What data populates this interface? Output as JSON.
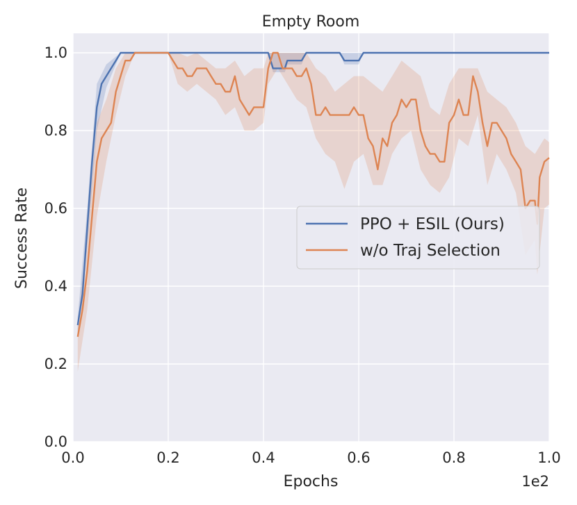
{
  "chart_data": {
    "type": "line",
    "title": "Empty Room",
    "xlabel": "Epochs",
    "ylabel": "Success Rate",
    "x_offset_label": "1e2",
    "xlim": [
      0.0,
      1.0
    ],
    "ylim": [
      0.0,
      1.05
    ],
    "xticks": [
      0.0,
      0.2,
      0.4,
      0.6,
      0.8,
      1.0
    ],
    "xtick_labels": [
      "0.0",
      "0.2",
      "0.4",
      "0.6",
      "0.8",
      "1.0"
    ],
    "yticks": [
      0.0,
      0.2,
      0.4,
      0.6,
      0.8,
      1.0
    ],
    "ytick_labels": [
      "0.0",
      "0.2",
      "0.4",
      "0.6",
      "0.8",
      "1.0"
    ],
    "grid": true,
    "legend_position": "center-right",
    "background": "#eaeaf2",
    "series": [
      {
        "name": "PPO + ESIL (Ours)",
        "color": "#4c72b0",
        "points": [
          [
            0.01,
            0.3
          ],
          [
            0.02,
            0.38
          ],
          [
            0.03,
            0.55
          ],
          [
            0.04,
            0.72
          ],
          [
            0.05,
            0.86
          ],
          [
            0.06,
            0.92
          ],
          [
            0.07,
            0.94
          ],
          [
            0.08,
            0.96
          ],
          [
            0.09,
            0.98
          ],
          [
            0.1,
            1.0
          ],
          [
            0.2,
            1.0
          ],
          [
            0.3,
            1.0
          ],
          [
            0.41,
            1.0
          ],
          [
            0.42,
            0.96
          ],
          [
            0.445,
            0.96
          ],
          [
            0.45,
            0.98
          ],
          [
            0.48,
            0.98
          ],
          [
            0.49,
            1.0
          ],
          [
            0.56,
            1.0
          ],
          [
            0.57,
            0.98
          ],
          [
            0.6,
            0.98
          ],
          [
            0.61,
            1.0
          ],
          [
            1.0,
            1.0
          ]
        ],
        "band_upper": [
          [
            0.01,
            0.32
          ],
          [
            0.03,
            0.6
          ],
          [
            0.05,
            0.92
          ],
          [
            0.07,
            0.97
          ],
          [
            0.1,
            1.0
          ],
          [
            1.0,
            1.0
          ]
        ],
        "band_lower": [
          [
            0.01,
            0.28
          ],
          [
            0.03,
            0.5
          ],
          [
            0.05,
            0.8
          ],
          [
            0.07,
            0.91
          ],
          [
            0.1,
            1.0
          ],
          [
            0.41,
            1.0
          ],
          [
            0.42,
            0.95
          ],
          [
            0.445,
            0.95
          ],
          [
            0.45,
            0.97
          ],
          [
            0.48,
            0.97
          ],
          [
            0.49,
            1.0
          ],
          [
            0.56,
            1.0
          ],
          [
            0.57,
            0.97
          ],
          [
            0.6,
            0.97
          ],
          [
            0.61,
            1.0
          ],
          [
            1.0,
            1.0
          ]
        ]
      },
      {
        "name": "w/o Traj Selection",
        "color": "#dd8452",
        "points": [
          [
            0.01,
            0.27
          ],
          [
            0.02,
            0.34
          ],
          [
            0.03,
            0.44
          ],
          [
            0.04,
            0.58
          ],
          [
            0.05,
            0.72
          ],
          [
            0.06,
            0.78
          ],
          [
            0.07,
            0.8
          ],
          [
            0.08,
            0.82
          ],
          [
            0.09,
            0.9
          ],
          [
            0.1,
            0.94
          ],
          [
            0.11,
            0.98
          ],
          [
            0.12,
            0.98
          ],
          [
            0.13,
            1.0
          ],
          [
            0.14,
            1.0
          ],
          [
            0.15,
            1.0
          ],
          [
            0.16,
            1.0
          ],
          [
            0.17,
            1.0
          ],
          [
            0.18,
            1.0
          ],
          [
            0.19,
            1.0
          ],
          [
            0.2,
            1.0
          ],
          [
            0.21,
            0.98
          ],
          [
            0.22,
            0.96
          ],
          [
            0.23,
            0.96
          ],
          [
            0.24,
            0.94
          ],
          [
            0.25,
            0.94
          ],
          [
            0.26,
            0.96
          ],
          [
            0.27,
            0.96
          ],
          [
            0.28,
            0.96
          ],
          [
            0.29,
            0.94
          ],
          [
            0.3,
            0.92
          ],
          [
            0.31,
            0.92
          ],
          [
            0.32,
            0.9
          ],
          [
            0.33,
            0.9
          ],
          [
            0.34,
            0.94
          ],
          [
            0.35,
            0.88
          ],
          [
            0.36,
            0.86
          ],
          [
            0.37,
            0.84
          ],
          [
            0.38,
            0.86
          ],
          [
            0.39,
            0.86
          ],
          [
            0.4,
            0.86
          ],
          [
            0.41,
            0.96
          ],
          [
            0.42,
            1.0
          ],
          [
            0.43,
            1.0
          ],
          [
            0.44,
            0.96
          ],
          [
            0.45,
            0.96
          ],
          [
            0.46,
            0.96
          ],
          [
            0.47,
            0.94
          ],
          [
            0.48,
            0.94
          ],
          [
            0.49,
            0.96
          ],
          [
            0.5,
            0.92
          ],
          [
            0.51,
            0.84
          ],
          [
            0.52,
            0.84
          ],
          [
            0.53,
            0.86
          ],
          [
            0.54,
            0.84
          ],
          [
            0.55,
            0.84
          ],
          [
            0.56,
            0.84
          ],
          [
            0.57,
            0.84
          ],
          [
            0.58,
            0.84
          ],
          [
            0.59,
            0.86
          ],
          [
            0.6,
            0.84
          ],
          [
            0.61,
            0.84
          ],
          [
            0.62,
            0.78
          ],
          [
            0.63,
            0.76
          ],
          [
            0.64,
            0.7
          ],
          [
            0.65,
            0.78
          ],
          [
            0.66,
            0.76
          ],
          [
            0.67,
            0.82
          ],
          [
            0.68,
            0.84
          ],
          [
            0.69,
            0.88
          ],
          [
            0.7,
            0.86
          ],
          [
            0.71,
            0.88
          ],
          [
            0.72,
            0.88
          ],
          [
            0.73,
            0.8
          ],
          [
            0.74,
            0.76
          ],
          [
            0.75,
            0.74
          ],
          [
            0.76,
            0.74
          ],
          [
            0.77,
            0.72
          ],
          [
            0.78,
            0.72
          ],
          [
            0.79,
            0.82
          ],
          [
            0.8,
            0.84
          ],
          [
            0.81,
            0.88
          ],
          [
            0.82,
            0.84
          ],
          [
            0.83,
            0.84
          ],
          [
            0.84,
            0.94
          ],
          [
            0.85,
            0.9
          ],
          [
            0.86,
            0.82
          ],
          [
            0.87,
            0.76
          ],
          [
            0.88,
            0.82
          ],
          [
            0.89,
            0.82
          ],
          [
            0.9,
            0.8
          ],
          [
            0.91,
            0.78
          ],
          [
            0.92,
            0.74
          ],
          [
            0.93,
            0.72
          ],
          [
            0.94,
            0.7
          ],
          [
            0.95,
            0.6
          ],
          [
            0.96,
            0.62
          ],
          [
            0.97,
            0.62
          ],
          [
            0.975,
            0.56
          ],
          [
            0.98,
            0.68
          ],
          [
            0.99,
            0.72
          ],
          [
            1.0,
            0.73
          ]
        ],
        "band_upper": [
          [
            0.01,
            0.3
          ],
          [
            0.03,
            0.54
          ],
          [
            0.05,
            0.82
          ],
          [
            0.07,
            0.88
          ],
          [
            0.09,
            0.96
          ],
          [
            0.11,
            1.0
          ],
          [
            0.2,
            1.0
          ],
          [
            0.22,
            1.0
          ],
          [
            0.24,
            0.99
          ],
          [
            0.26,
            1.0
          ],
          [
            0.28,
            0.98
          ],
          [
            0.3,
            0.96
          ],
          [
            0.32,
            0.96
          ],
          [
            0.34,
            0.98
          ],
          [
            0.36,
            0.94
          ],
          [
            0.38,
            0.96
          ],
          [
            0.4,
            0.96
          ],
          [
            0.41,
            1.0
          ],
          [
            0.43,
            1.0
          ],
          [
            0.45,
            1.0
          ],
          [
            0.47,
            1.0
          ],
          [
            0.49,
            1.0
          ],
          [
            0.51,
            0.96
          ],
          [
            0.53,
            0.94
          ],
          [
            0.55,
            0.9
          ],
          [
            0.57,
            0.92
          ],
          [
            0.59,
            0.94
          ],
          [
            0.61,
            0.94
          ],
          [
            0.63,
            0.92
          ],
          [
            0.65,
            0.9
          ],
          [
            0.67,
            0.94
          ],
          [
            0.69,
            0.98
          ],
          [
            0.71,
            0.96
          ],
          [
            0.73,
            0.94
          ],
          [
            0.75,
            0.86
          ],
          [
            0.77,
            0.84
          ],
          [
            0.79,
            0.92
          ],
          [
            0.81,
            0.96
          ],
          [
            0.83,
            0.96
          ],
          [
            0.85,
            0.96
          ],
          [
            0.87,
            0.9
          ],
          [
            0.89,
            0.88
          ],
          [
            0.91,
            0.86
          ],
          [
            0.93,
            0.82
          ],
          [
            0.95,
            0.76
          ],
          [
            0.97,
            0.74
          ],
          [
            0.99,
            0.78
          ],
          [
            1.0,
            0.77
          ]
        ],
        "band_lower": [
          [
            0.01,
            0.18
          ],
          [
            0.03,
            0.34
          ],
          [
            0.05,
            0.58
          ],
          [
            0.07,
            0.72
          ],
          [
            0.09,
            0.84
          ],
          [
            0.11,
            0.94
          ],
          [
            0.13,
            1.0
          ],
          [
            0.2,
            1.0
          ],
          [
            0.22,
            0.92
          ],
          [
            0.24,
            0.9
          ],
          [
            0.26,
            0.92
          ],
          [
            0.28,
            0.9
          ],
          [
            0.3,
            0.88
          ],
          [
            0.32,
            0.84
          ],
          [
            0.34,
            0.86
          ],
          [
            0.36,
            0.8
          ],
          [
            0.38,
            0.8
          ],
          [
            0.4,
            0.82
          ],
          [
            0.41,
            0.92
          ],
          [
            0.43,
            0.96
          ],
          [
            0.45,
            0.92
          ],
          [
            0.47,
            0.88
          ],
          [
            0.49,
            0.86
          ],
          [
            0.51,
            0.78
          ],
          [
            0.53,
            0.74
          ],
          [
            0.55,
            0.72
          ],
          [
            0.57,
            0.65
          ],
          [
            0.59,
            0.72
          ],
          [
            0.61,
            0.74
          ],
          [
            0.63,
            0.66
          ],
          [
            0.65,
            0.66
          ],
          [
            0.67,
            0.74
          ],
          [
            0.69,
            0.78
          ],
          [
            0.71,
            0.8
          ],
          [
            0.73,
            0.7
          ],
          [
            0.75,
            0.66
          ],
          [
            0.77,
            0.64
          ],
          [
            0.79,
            0.68
          ],
          [
            0.81,
            0.78
          ],
          [
            0.83,
            0.76
          ],
          [
            0.85,
            0.84
          ],
          [
            0.87,
            0.66
          ],
          [
            0.89,
            0.74
          ],
          [
            0.91,
            0.7
          ],
          [
            0.93,
            0.64
          ],
          [
            0.95,
            0.48
          ],
          [
            0.97,
            0.52
          ],
          [
            0.975,
            0.43
          ],
          [
            0.99,
            0.6
          ],
          [
            1.0,
            0.61
          ]
        ]
      }
    ]
  }
}
